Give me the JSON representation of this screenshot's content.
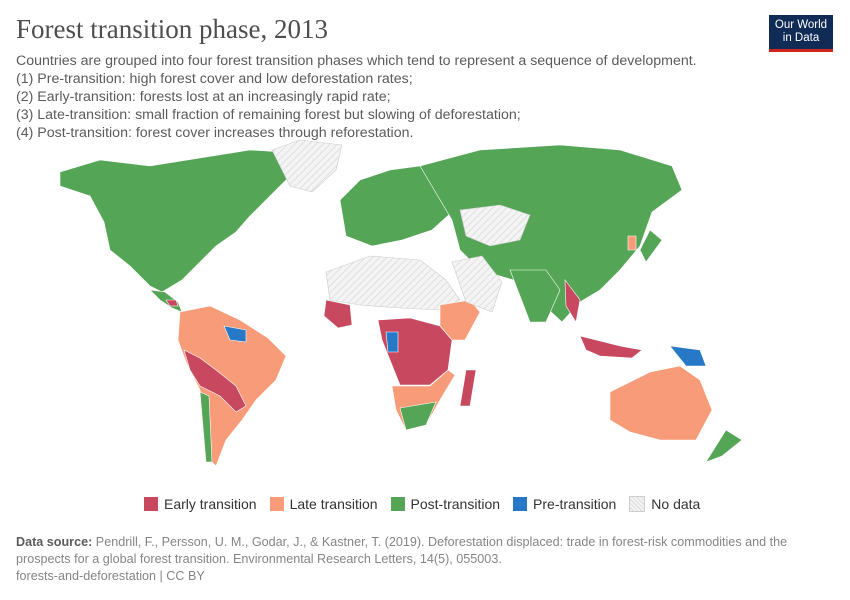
{
  "header": {
    "title": "Forest transition phase, 2013",
    "subtitle_lines": [
      "Countries are grouped into four forest transition phases which tend to represent a sequence of development.",
      "(1) Pre-transition: high forest cover and low deforestation rates;",
      "(2) Early-transition: forests lost at an increasingly rapid rate;",
      "(3) Late-transition: small fraction of remaining forest but slowing of deforestation;",
      "(4) Post-transition: forest cover increases through reforestation."
    ],
    "logo_line1": "Our World",
    "logo_line2": "in Data"
  },
  "colors": {
    "early": "#c8485f",
    "late": "#f79b78",
    "post": "#55a556",
    "pre": "#2878c8",
    "nodata": "#e8e8e8"
  },
  "legend": [
    {
      "key": "early",
      "label": "Early transition"
    },
    {
      "key": "late",
      "label": "Late transition"
    },
    {
      "key": "post",
      "label": "Post-transition"
    },
    {
      "key": "pre",
      "label": "Pre-transition"
    },
    {
      "key": "nodata",
      "label": "No data"
    }
  ],
  "footer": {
    "source_label": "Data source:",
    "source_text": " Pendrill, F., Persson, U. M., Godar, J., & Kastner, T. (2019). Deforestation displaced: trade in forest-risk commodities and the prospects for a global forest transition. Environmental Research Letters, 14(5), 055003.",
    "credit": "forests-and-deforestation | CC BY"
  }
}
